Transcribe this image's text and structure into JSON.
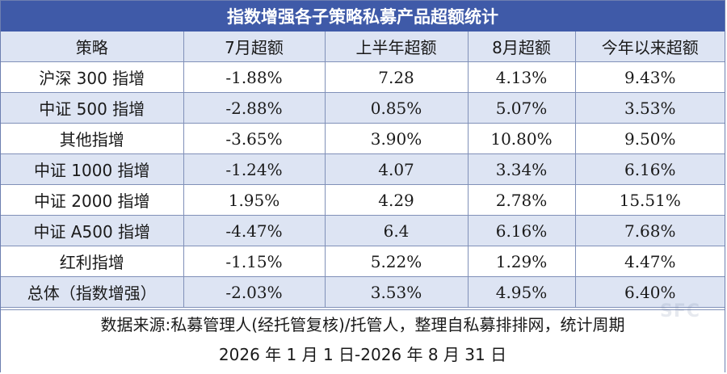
{
  "title": "指数增强各子策略私募产品超额统计",
  "table": {
    "headers": [
      "策略",
      "7月超额",
      "上半年超额",
      "8月超额",
      "今年以来超额"
    ],
    "rows": [
      [
        "沪深 300 指增",
        "-1.88%",
        "7.28",
        "4.13%",
        "9.43%"
      ],
      [
        "中证 500 指增",
        "-2.88%",
        "0.85%",
        "5.07%",
        "3.53%"
      ],
      [
        "其他指增",
        "-3.65%",
        "3.90%",
        "10.80%",
        "9.50%"
      ],
      [
        "中证 1000 指增",
        "-1.24%",
        "4.07",
        "3.34%",
        "6.16%"
      ],
      [
        "中证 2000 指增",
        "1.95%",
        "4.29",
        "2.78%",
        "15.51%"
      ],
      [
        "中证 A500 指增",
        "-4.47%",
        "6.4",
        "6.16%",
        "7.68%"
      ],
      [
        "红利指增",
        "-1.15%",
        "5.22%",
        "1.29%",
        "4.47%"
      ],
      [
        "总体（指数增强）",
        "-2.03%",
        "3.53%",
        "4.95%",
        "6.40%"
      ]
    ]
  },
  "footer": {
    "line1": "数据来源:私募管理人(经托管复核)/托管人，整理自私募排排网，统计周期",
    "line2": "2026 年 1 月 1 日-2026 年 8 月 31 日"
  },
  "watermark": "SFC",
  "colors": {
    "header_bg": "#3f5aa8",
    "stripe_bg": "#dde4f3",
    "border": "#8090b8"
  }
}
